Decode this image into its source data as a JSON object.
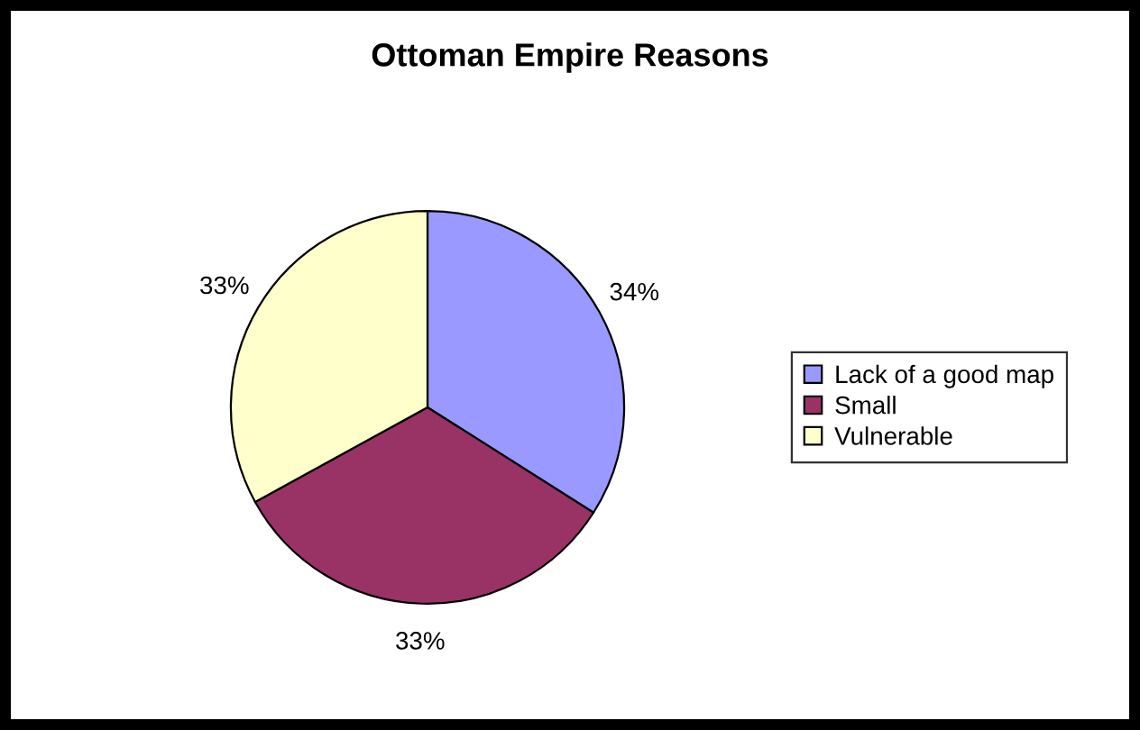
{
  "chart_data": {
    "type": "pie",
    "title": "Ottoman Empire Reasons",
    "categories": [
      "Lack of a good map",
      "Small",
      "Vulnerable"
    ],
    "values": [
      34,
      33,
      33
    ],
    "value_labels": [
      "34%",
      "33%",
      "33%"
    ],
    "colors": [
      "#9999ff",
      "#993366",
      "#ffffcc"
    ],
    "legend": "right"
  }
}
